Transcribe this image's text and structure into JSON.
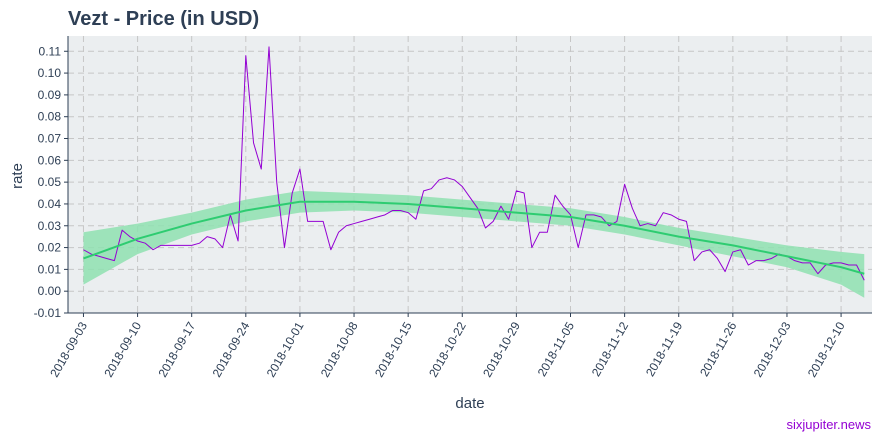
{
  "chart_data": {
    "type": "line",
    "title": "Vezt - Price (in USD)",
    "xlabel": "date",
    "ylabel": "rate",
    "credit": "sixjupiter.news",
    "x_range": [
      "2018-09-01",
      "2018-12-14"
    ],
    "ylim": [
      -0.01,
      0.117
    ],
    "y_ticks": [
      -0.01,
      0.0,
      0.01,
      0.02,
      0.03,
      0.04,
      0.05,
      0.06,
      0.07,
      0.08,
      0.09,
      0.1,
      0.11
    ],
    "y_tick_labels": [
      "-0.01",
      "0.00",
      "0.01",
      "0.02",
      "0.03",
      "0.04",
      "0.05",
      "0.06",
      "0.07",
      "0.08",
      "0.09",
      "0.10",
      "0.11"
    ],
    "x_ticks": [
      "2018-09-03",
      "2018-09-10",
      "2018-09-17",
      "2018-09-24",
      "2018-10-01",
      "2018-10-08",
      "2018-10-15",
      "2018-10-22",
      "2018-10-29",
      "2018-11-05",
      "2018-11-12",
      "2018-11-19",
      "2018-11-26",
      "2018-12-03",
      "2018-12-10"
    ],
    "grid": true,
    "legend": "none",
    "colors": {
      "price_line": "#9400d3",
      "smooth_line": "#2ecc71",
      "band": "#8fe0b0",
      "panel": "#ebeef0",
      "grid": "#c6c6c6",
      "text": "#2e3f55",
      "credit": "#9400d3"
    },
    "series": [
      {
        "x": [
          "2018-09-03",
          "2018-09-04",
          "2018-09-05",
          "2018-09-06",
          "2018-09-07",
          "2018-09-08",
          "2018-09-09",
          "2018-09-10",
          "2018-09-11",
          "2018-09-12",
          "2018-09-13",
          "2018-09-14",
          "2018-09-15",
          "2018-09-16",
          "2018-09-17",
          "2018-09-18",
          "2018-09-19",
          "2018-09-20",
          "2018-09-21",
          "2018-09-22",
          "2018-09-23",
          "2018-09-24",
          "2018-09-25",
          "2018-09-26",
          "2018-09-27",
          "2018-09-28",
          "2018-09-29",
          "2018-09-30",
          "2018-10-01",
          "2018-10-02",
          "2018-10-03",
          "2018-10-04",
          "2018-10-05",
          "2018-10-06",
          "2018-10-07",
          "2018-10-08",
          "2018-10-09",
          "2018-10-10",
          "2018-10-11",
          "2018-10-12",
          "2018-10-13",
          "2018-10-14",
          "2018-10-15",
          "2018-10-16",
          "2018-10-17",
          "2018-10-18",
          "2018-10-19",
          "2018-10-20",
          "2018-10-21",
          "2018-10-22",
          "2018-10-23",
          "2018-10-24",
          "2018-10-25",
          "2018-10-26",
          "2018-10-27",
          "2018-10-28",
          "2018-10-29",
          "2018-10-30",
          "2018-10-31",
          "2018-11-01",
          "2018-11-02",
          "2018-11-03",
          "2018-11-04",
          "2018-11-05",
          "2018-11-06",
          "2018-11-07",
          "2018-11-08",
          "2018-11-09",
          "2018-11-10",
          "2018-11-11",
          "2018-11-12",
          "2018-11-13",
          "2018-11-14",
          "2018-11-15",
          "2018-11-16",
          "2018-11-17",
          "2018-11-18",
          "2018-11-19",
          "2018-11-20",
          "2018-11-21",
          "2018-11-22",
          "2018-11-23",
          "2018-11-24",
          "2018-11-25",
          "2018-11-26",
          "2018-11-27",
          "2018-11-28",
          "2018-11-29",
          "2018-11-30",
          "2018-12-01",
          "2018-12-02",
          "2018-12-03",
          "2018-12-04",
          "2018-12-05",
          "2018-12-06",
          "2018-12-07",
          "2018-12-08",
          "2018-12-09",
          "2018-12-10",
          "2018-12-11",
          "2018-12-12",
          "2018-12-13"
        ],
        "y": [
          0.019,
          0.017,
          0.016,
          0.015,
          0.014,
          0.028,
          0.025,
          0.023,
          0.022,
          0.019,
          0.021,
          0.021,
          0.021,
          0.021,
          0.021,
          0.022,
          0.025,
          0.024,
          0.02,
          0.035,
          0.023,
          0.108,
          0.068,
          0.056,
          0.112,
          0.05,
          0.02,
          0.045,
          0.056,
          0.032,
          0.032,
          0.032,
          0.019,
          0.027,
          0.03,
          0.031,
          0.032,
          0.033,
          0.034,
          0.035,
          0.037,
          0.037,
          0.036,
          0.033,
          0.046,
          0.047,
          0.051,
          0.052,
          0.051,
          0.048,
          0.043,
          0.038,
          0.029,
          0.032,
          0.039,
          0.033,
          0.046,
          0.045,
          0.02,
          0.027,
          0.027,
          0.044,
          0.039,
          0.035,
          0.02,
          0.035,
          0.035,
          0.034,
          0.03,
          0.032,
          0.049,
          0.038,
          0.03,
          0.031,
          0.03,
          0.036,
          0.035,
          0.033,
          0.032,
          0.014,
          0.018,
          0.019,
          0.015,
          0.009,
          0.018,
          0.019,
          0.012,
          0.014,
          0.014,
          0.015,
          0.017,
          0.016,
          0.014,
          0.013,
          0.013,
          0.008,
          0.012,
          0.013,
          0.013,
          0.012,
          0.012,
          0.005
        ]
      }
    ],
    "smooth": {
      "x": [
        "2018-09-03",
        "2018-09-10",
        "2018-09-17",
        "2018-09-24",
        "2018-10-01",
        "2018-10-08",
        "2018-10-15",
        "2018-10-22",
        "2018-10-29",
        "2018-11-05",
        "2018-11-12",
        "2018-11-19",
        "2018-11-26",
        "2018-12-03",
        "2018-12-10",
        "2018-12-13"
      ],
      "y": [
        0.015,
        0.024,
        0.031,
        0.037,
        0.041,
        0.041,
        0.04,
        0.038,
        0.036,
        0.034,
        0.03,
        0.025,
        0.021,
        0.016,
        0.011,
        0.008
      ],
      "lower": [
        0.003,
        0.017,
        0.026,
        0.032,
        0.036,
        0.037,
        0.036,
        0.034,
        0.032,
        0.03,
        0.026,
        0.021,
        0.016,
        0.011,
        0.003,
        -0.003
      ],
      "upper": [
        0.027,
        0.031,
        0.036,
        0.042,
        0.046,
        0.045,
        0.044,
        0.042,
        0.04,
        0.038,
        0.034,
        0.029,
        0.025,
        0.021,
        0.018,
        0.017
      ]
    }
  }
}
